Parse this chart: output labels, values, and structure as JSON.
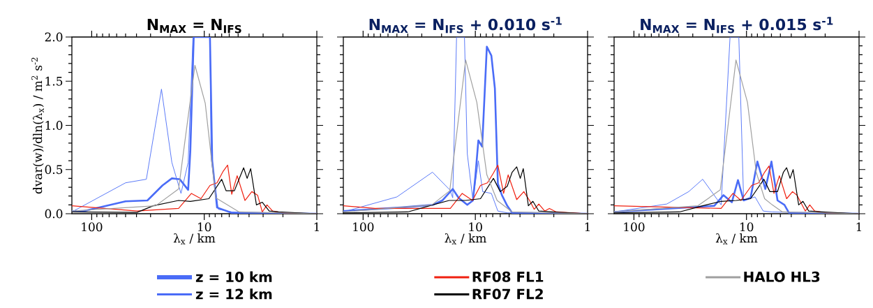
{
  "chart_data": [
    {
      "type": "line",
      "title": "**N$_{MAX}$ = N$_{IFS}$**",
      "xlabel": "λ$_{x}$ / km",
      "ylabel": "dvar(w)/dln(λ$_{x}$) / m$^{2}$ s$^{-2}$",
      "log": "x",
      "legend": "bottom",
      "xlim": [
        150,
        1
      ],
      "xticks": [
        100,
        10,
        1
      ],
      "ylim": [
        0,
        2
      ],
      "yticks": [
        {
          "value": 0,
          "label": "0.0"
        },
        {
          "value": 0.5,
          "label": "0.5"
        },
        {
          "value": 1,
          "label": "1.0"
        },
        {
          "value": 1.5,
          "label": "1.5"
        },
        {
          "value": 2,
          "label": "2.0"
        }
      ],
      "series": [
        {
          "name": "z = 10 km",
          "color": "#4a6cf7",
          "x": [
            150,
            118,
            50,
            32,
            23.5,
            19.4,
            16.5,
            13.9,
            13.3,
            12.4,
            11.8,
            8.9,
            8.5,
            7.7,
            5.7,
            1
          ],
          "values": [
            0.03,
            0.03,
            0.14,
            0.15,
            0.32,
            0.4,
            0.39,
            0.27,
            0.71,
            2.0,
            2.0,
            2.0,
            0.6,
            0.07,
            0.01,
            0
          ]
        },
        {
          "name": "z = 12 km",
          "color": "#4a6cf7",
          "x": [
            150,
            50,
            32.7,
            24,
            19.4,
            16.1,
            13.9,
            12.6,
            8.9,
            8.7,
            7.5,
            5.7,
            1
          ],
          "values": [
            0.02,
            0.35,
            0.39,
            1.41,
            0.58,
            0.23,
            0.58,
            2.0,
            2.0,
            0.63,
            0.05,
            0.02,
            0
          ]
        },
        {
          "name": "RF08 FL1",
          "color": "#f02010",
          "x": [
            150,
            39.6,
            16.9,
            13,
            10.7,
            8.9,
            7.7,
            6.8,
            6.2,
            5.7,
            5.1,
            4.35,
            3.78,
            3.36,
            3.05,
            2.77,
            2.47,
            1.99,
            1
          ],
          "values": [
            0.09,
            0.03,
            0.06,
            0.23,
            0.17,
            0.32,
            0.35,
            0.48,
            0.55,
            0.22,
            0.43,
            0.15,
            0.25,
            0.21,
            0.02,
            0.1,
            0.03,
            0.01,
            0
          ]
        },
        {
          "name": "RF07 FL2",
          "color": "#000000",
          "x": [
            150,
            39.6,
            28.4,
            16.9,
            13.3,
            9.1,
            7,
            6.4,
            5.4,
            4.47,
            4.16,
            3.87,
            3.44,
            3.05,
            2.65,
            2.19,
            1
          ],
          "values": [
            0.02,
            0.015,
            0.09,
            0.15,
            0.14,
            0.17,
            0.39,
            0.26,
            0.26,
            0.52,
            0.4,
            0.51,
            0.1,
            0.13,
            0.03,
            0.02,
            0
          ]
        },
        {
          "name": "HALO HL3",
          "color": "#a0a0a0",
          "x": [
            150,
            27,
            16.9,
            12.1,
            9.8,
            7.9,
            4.9,
            1
          ],
          "values": [
            0.03,
            0.09,
            0.28,
            1.68,
            1.25,
            0.18,
            0.02,
            0
          ]
        }
      ]
    },
    {
      "type": "line",
      "title": "**N$_{MAX}$ = N$_{IFS}$ + 0.010 s$^{-1}$**",
      "xlabel": "λ$_{x}$ / km",
      "log": "x",
      "tick_labels": "x",
      "xlim": [
        150,
        1
      ],
      "xticks": [
        100,
        10,
        1
      ],
      "ylim": [
        0,
        2
      ],
      "yticks": [
        0,
        0.5,
        1,
        1.5,
        2
      ],
      "series": [
        {
          "color": "#4a6cf7",
          "x": [
            150,
            46.6,
            24,
            19.7,
            15.9,
            14.1,
            11.8,
            10.5,
            10,
            9.4,
            8.7,
            7.9,
            7.2,
            6.7,
            6.3,
            5.8,
            5.2,
            4.7,
            1
          ],
          "values": [
            0.03,
            0.07,
            0.1,
            0.15,
            0.28,
            0.18,
            0.1,
            0.15,
            0.42,
            0.83,
            0.76,
            1.89,
            1.79,
            1.42,
            0.34,
            0.21,
            0.09,
            0.01,
            0
          ]
        },
        {
          "color": "#4a6cf7",
          "x": [
            150,
            50,
            24.1,
            16.9,
            15.9,
            14.7,
            12.5,
            11.8,
            10.5,
            9.4,
            8.6,
            7.2,
            6.3,
            5.2,
            1
          ],
          "values": [
            0.02,
            0.19,
            0.47,
            0.27,
            0.18,
            2.0,
            2.0,
            0.68,
            0.15,
            0.6,
            0.25,
            0.23,
            0.03,
            0.01,
            0
          ]
        },
        {
          "color": "#f02010",
          "x": [
            150,
            78.7,
            16.7,
            13.1,
            10.6,
            9,
            7.8,
            6.9,
            6.3,
            5.6,
            5.1,
            4.28,
            3.7,
            3.29,
            2.99,
            2.72,
            2.41,
            2.19,
            1.9,
            1
          ],
          "values": [
            0.09,
            0.06,
            0.06,
            0.23,
            0.15,
            0.32,
            0.35,
            0.46,
            0.55,
            0.23,
            0.44,
            0.16,
            0.25,
            0.15,
            0.05,
            0.11,
            0.03,
            0.06,
            0.02,
            0
          ]
        },
        {
          "color": "#000000",
          "x": [
            150,
            40,
            24,
            17.1,
            12.2,
            9,
            6.9,
            6,
            5.2,
            4.7,
            4.28,
            3.98,
            3.74,
            3.37,
            3.07,
            2.72,
            2.09,
            1
          ],
          "values": [
            0.01,
            0.02,
            0.1,
            0.15,
            0.15,
            0.17,
            0.4,
            0.25,
            0.31,
            0.47,
            0.53,
            0.4,
            0.51,
            0.09,
            0.14,
            0.03,
            0.02,
            0
          ]
        },
        {
          "color": "#a0a0a0",
          "x": [
            150,
            24.4,
            16.9,
            12.2,
            9.7,
            7.9,
            6.4,
            4.7,
            1
          ],
          "values": [
            0.02,
            0.1,
            0.26,
            1.74,
            1.26,
            0.44,
            0.15,
            0.02,
            0
          ]
        }
      ]
    },
    {
      "type": "line",
      "title": "**N$_{MAX}$ = N$_{IFS}$ + 0.015 s$^{-1}$**",
      "xlabel": "λ$_{x}$ / km",
      "log": "x",
      "tick_labels": "x",
      "xlim": [
        150,
        1
      ],
      "xticks": [
        100,
        10,
        1
      ],
      "ylim": [
        0,
        2
      ],
      "yticks": [
        0,
        0.5,
        1,
        1.5,
        2
      ],
      "series": [
        {
          "color": "#4a6cf7",
          "x": [
            150,
            19.3,
            16,
            13.5,
            11.9,
            10.6,
            9.2,
            8,
            6.8,
            6,
            5.3,
            4.6,
            4.2,
            1
          ],
          "values": [
            0.02,
            0.09,
            0.21,
            0.13,
            0.38,
            0.15,
            0.18,
            0.59,
            0.28,
            0.59,
            0.15,
            0.1,
            0.01,
            0
          ]
        },
        {
          "color": "#4a6cf7",
          "x": [
            150,
            51,
            32.6,
            24.5,
            16.8,
            14,
            11.7,
            10.6,
            9.4,
            8.4,
            7.1,
            5.9,
            1
          ],
          "values": [
            0.02,
            0.11,
            0.25,
            0.39,
            0.1,
            2.0,
            2.0,
            0.15,
            0.17,
            0.19,
            0.03,
            0.02,
            0
          ]
        },
        {
          "color": "#f02010",
          "x": [
            150,
            16.8,
            13.2,
            11.2,
            9,
            7.8,
            6.9,
            6.3,
            5.7,
            5.1,
            4.4,
            3.9,
            3.56,
            3,
            2.74,
            2.48,
            1.96,
            1
          ],
          "values": [
            0.09,
            0.06,
            0.23,
            0.15,
            0.32,
            0.35,
            0.47,
            0.54,
            0.23,
            0.43,
            0.17,
            0.25,
            0.21,
            0.03,
            0.1,
            0.03,
            0.01,
            0
          ]
        },
        {
          "color": "#000000",
          "x": [
            150,
            39.4,
            24.5,
            16.8,
            12.3,
            9.2,
            7,
            6.2,
            5.3,
            4.7,
            4.4,
            4.1,
            3.85,
            3.44,
            3.15,
            2.8,
            2.15,
            1
          ],
          "values": [
            0.01,
            0.02,
            0.09,
            0.14,
            0.15,
            0.17,
            0.39,
            0.25,
            0.25,
            0.47,
            0.52,
            0.4,
            0.5,
            0.1,
            0.14,
            0.03,
            0.02,
            0
          ]
        },
        {
          "color": "#a0a0a0",
          "x": [
            150,
            27,
            17.1,
            12.4,
            9.8,
            8.2,
            6.9,
            5.9,
            4.8,
            1
          ],
          "values": [
            0.02,
            0.09,
            0.27,
            1.74,
            1.26,
            0.47,
            0.17,
            0.1,
            0.02,
            0
          ]
        }
      ]
    }
  ]
}
